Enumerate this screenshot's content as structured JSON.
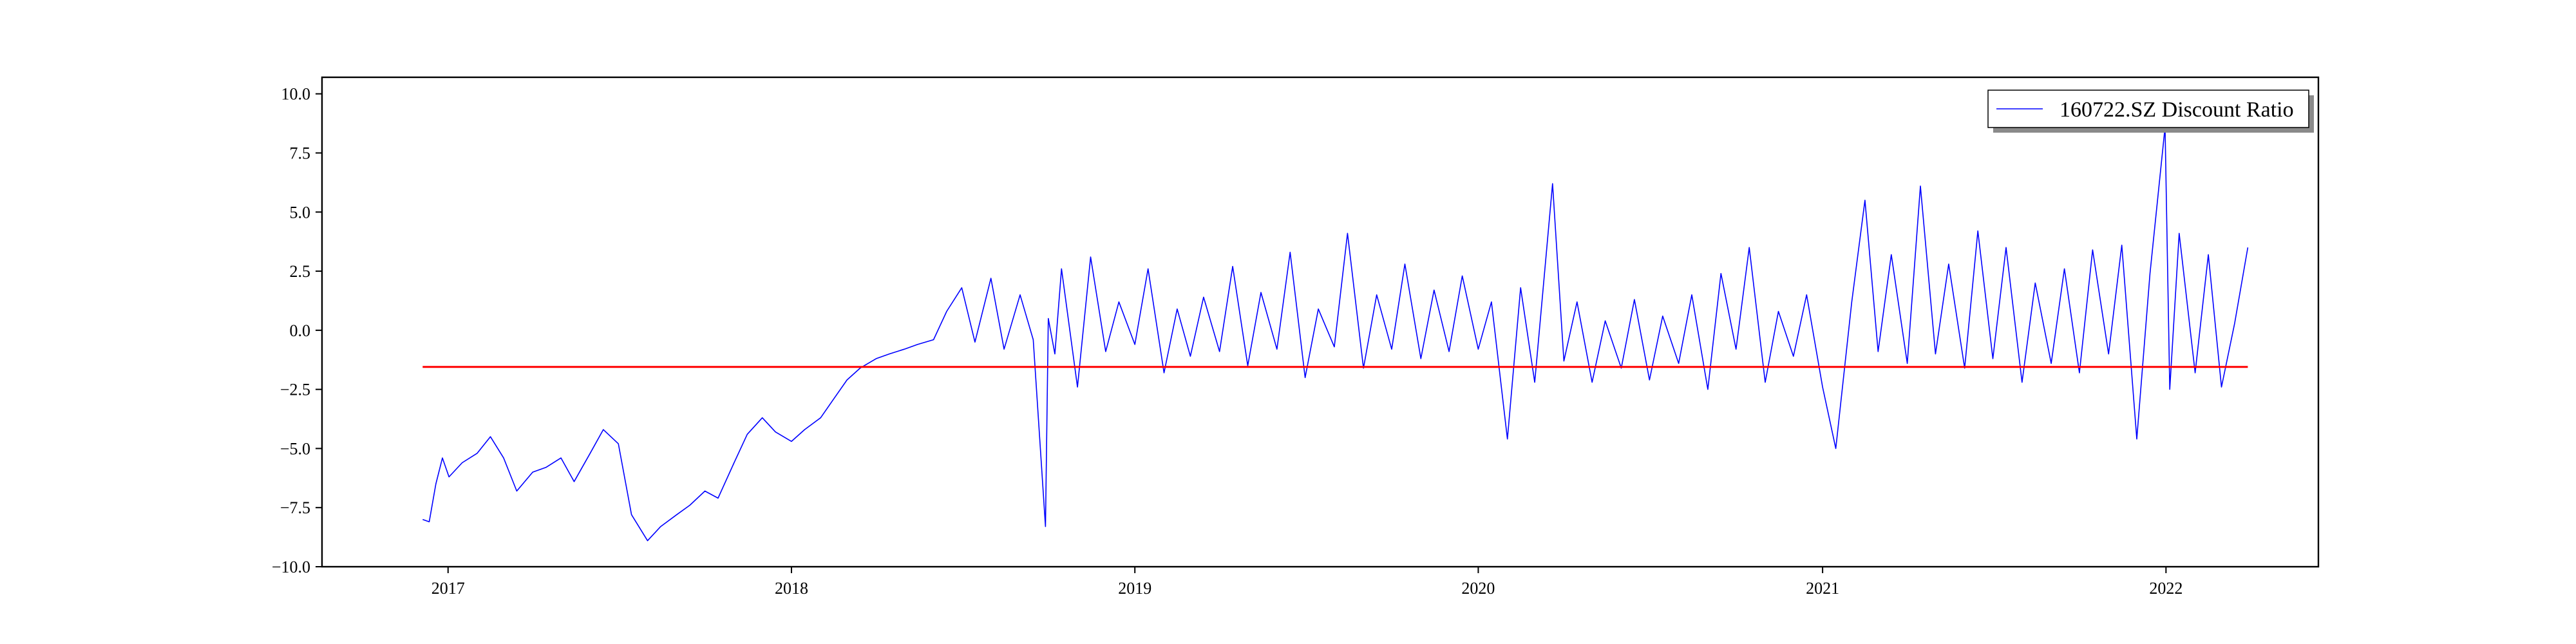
{
  "chart_data": {
    "type": "line",
    "title": "",
    "xlabel": "",
    "ylabel": "",
    "xlim": [
      "2016-08-20",
      "2022-06-12"
    ],
    "ylim": [
      -10.0,
      10.7
    ],
    "grid": false,
    "legend": {
      "placement": "top-right",
      "entries": [
        "160722.SZ Discount Ratio"
      ]
    },
    "x_ticks": [
      "2017",
      "2018",
      "2019",
      "2020",
      "2021",
      "2022"
    ],
    "x_tick_dates": [
      "2017-01-01",
      "2018-01-01",
      "2019-01-01",
      "2020-01-01",
      "2021-01-01",
      "2022-01-01"
    ],
    "y_ticks": [
      10.0,
      7.5,
      5.0,
      2.5,
      0.0,
      -2.5,
      -5.0,
      -7.5,
      -10.0
    ],
    "y_tick_labels": [
      "10.0",
      "7.5",
      "5.0",
      "2.5",
      "0.0",
      "−2.5",
      "−5.0",
      "−7.5",
      "−10.0"
    ],
    "series": [
      {
        "name": "160722.SZ Discount Ratio",
        "color": "#0000ff",
        "x": [
          "2016-12-05",
          "2016-12-12",
          "2016-12-19",
          "2016-12-26",
          "2017-01-02",
          "2017-01-16",
          "2017-02-01",
          "2017-02-15",
          "2017-03-01",
          "2017-03-15",
          "2017-04-01",
          "2017-04-15",
          "2017-05-01",
          "2017-05-15",
          "2017-06-01",
          "2017-06-15",
          "2017-07-01",
          "2017-07-15",
          "2017-08-01",
          "2017-08-15",
          "2017-09-01",
          "2017-09-15",
          "2017-10-01",
          "2017-10-15",
          "2017-11-01",
          "2017-11-15",
          "2017-12-01",
          "2017-12-15",
          "2018-01-01",
          "2018-01-15",
          "2018-02-01",
          "2018-02-15",
          "2018-03-01",
          "2018-03-15",
          "2018-04-01",
          "2018-04-15",
          "2018-05-01",
          "2018-05-15",
          "2018-06-01",
          "2018-06-15",
          "2018-07-01",
          "2018-07-15",
          "2018-08-01",
          "2018-08-15",
          "2018-09-01",
          "2018-09-15",
          "2018-09-28",
          "2018-10-01",
          "2018-10-08",
          "2018-10-15",
          "2018-11-01",
          "2018-11-15",
          "2018-12-01",
          "2018-12-15",
          "2019-01-01",
          "2019-01-15",
          "2019-02-01",
          "2019-02-15",
          "2019-03-01",
          "2019-03-15",
          "2019-04-01",
          "2019-04-15",
          "2019-05-01",
          "2019-05-15",
          "2019-06-01",
          "2019-06-15",
          "2019-07-01",
          "2019-07-15",
          "2019-08-01",
          "2019-08-15",
          "2019-09-01",
          "2019-09-15",
          "2019-10-01",
          "2019-10-15",
          "2019-11-01",
          "2019-11-15",
          "2019-12-01",
          "2019-12-15",
          "2020-01-01",
          "2020-01-15",
          "2020-02-01",
          "2020-02-15",
          "2020-03-01",
          "2020-03-20",
          "2020-04-01",
          "2020-04-15",
          "2020-05-01",
          "2020-05-15",
          "2020-06-01",
          "2020-06-15",
          "2020-07-01",
          "2020-07-15",
          "2020-08-01",
          "2020-08-15",
          "2020-09-01",
          "2020-09-15",
          "2020-10-01",
          "2020-10-15",
          "2020-11-01",
          "2020-11-15",
          "2020-12-01",
          "2020-12-15",
          "2021-01-01",
          "2021-01-15",
          "2021-02-01",
          "2021-02-15",
          "2021-03-01",
          "2021-03-15",
          "2021-04-01",
          "2021-04-15",
          "2021-05-01",
          "2021-05-15",
          "2021-06-01",
          "2021-06-15",
          "2021-07-01",
          "2021-07-15",
          "2021-08-01",
          "2021-08-15",
          "2021-09-01",
          "2021-09-15",
          "2021-10-01",
          "2021-10-15",
          "2021-11-01",
          "2021-11-15",
          "2021-12-01",
          "2021-12-15",
          "2021-12-31",
          "2022-01-05",
          "2022-01-15",
          "2022-02-01",
          "2022-02-15",
          "2022-03-01",
          "2022-03-15",
          "2022-03-29"
        ],
        "y": [
          -8.0,
          -8.1,
          -6.5,
          -5.4,
          -6.2,
          -5.6,
          -5.2,
          -4.5,
          -5.4,
          -6.8,
          -6.0,
          -5.8,
          -5.4,
          -6.4,
          -5.2,
          -4.2,
          -4.8,
          -7.8,
          -8.9,
          -8.3,
          -7.8,
          -7.4,
          -6.8,
          -7.1,
          -5.6,
          -4.4,
          -3.7,
          -4.3,
          -4.7,
          -4.2,
          -3.7,
          -2.9,
          -2.1,
          -1.6,
          -1.2,
          -1.0,
          -0.8,
          -0.6,
          -0.4,
          0.8,
          1.8,
          -0.5,
          2.2,
          -0.8,
          1.5,
          -0.4,
          -8.3,
          0.5,
          -1.0,
          2.6,
          -2.4,
          3.1,
          -0.9,
          1.2,
          -0.6,
          2.6,
          -1.8,
          0.9,
          -1.1,
          1.4,
          -0.9,
          2.7,
          -1.5,
          1.6,
          -0.8,
          3.3,
          -2.0,
          0.9,
          -0.7,
          4.1,
          -1.6,
          1.5,
          -0.8,
          2.8,
          -1.2,
          1.7,
          -0.9,
          2.3,
          -0.8,
          1.2,
          -4.6,
          1.8,
          -2.2,
          6.2,
          -1.3,
          1.2,
          -2.2,
          0.4,
          -1.6,
          1.3,
          -2.1,
          0.6,
          -1.4,
          1.5,
          -2.5,
          2.4,
          -0.8,
          3.5,
          -2.2,
          0.8,
          -1.1,
          1.5,
          -2.4,
          -5.0,
          1.2,
          5.5,
          -0.9,
          3.2,
          -1.4,
          6.1,
          -1.0,
          2.8,
          -1.6,
          4.2,
          -1.2,
          3.5,
          -2.2,
          2.0,
          -1.4,
          2.6,
          -1.8,
          3.4,
          -1.0,
          3.6,
          -4.6,
          2.4,
          8.6,
          -2.5,
          4.1,
          -1.8,
          3.2,
          -2.4,
          0.3,
          3.5
        ]
      },
      {
        "name": "",
        "color": "#ff0000",
        "x": [
          "2016-12-05",
          "2022-03-29"
        ],
        "y": [
          -1.55,
          -1.55
        ]
      }
    ]
  }
}
